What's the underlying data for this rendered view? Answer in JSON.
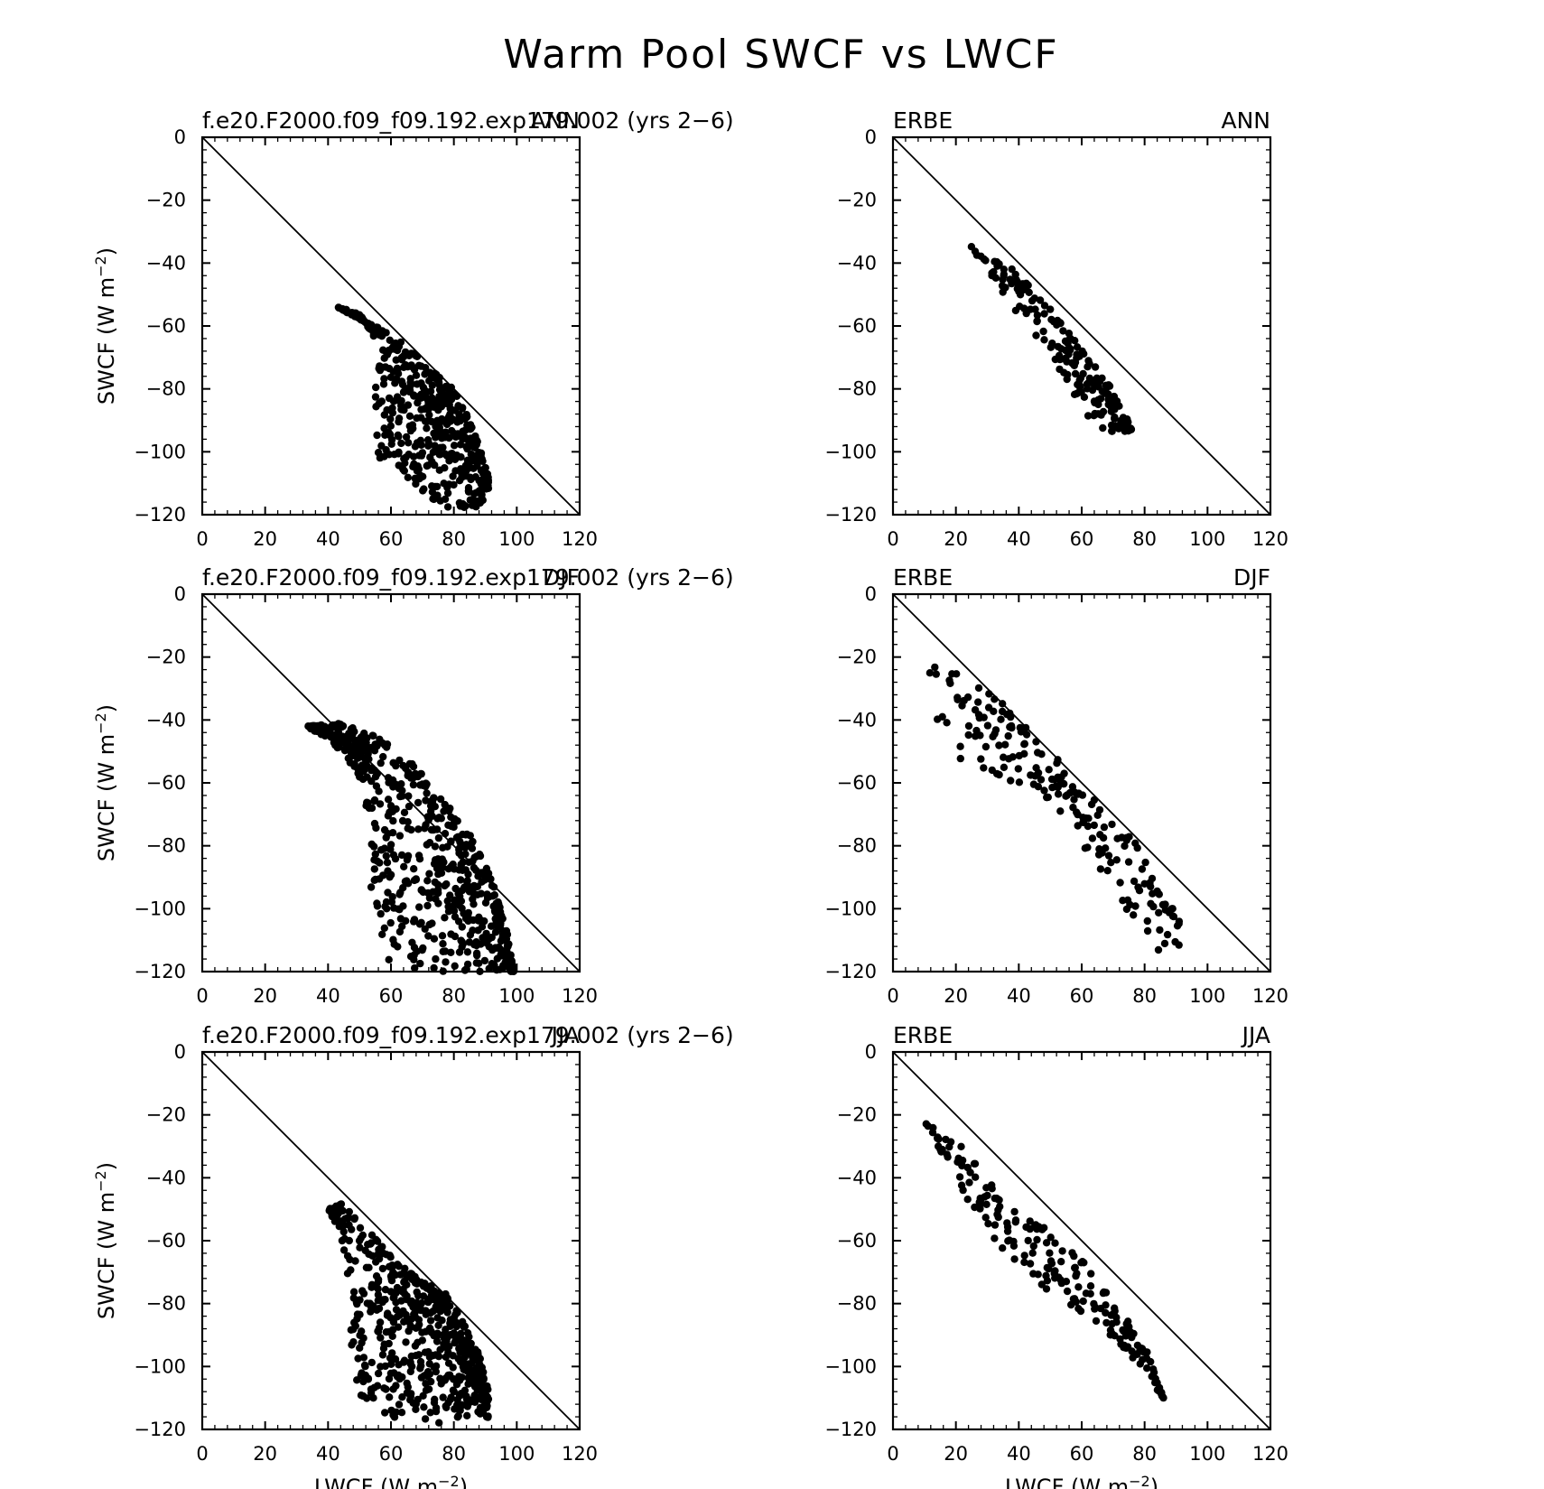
{
  "figure": {
    "title": "Warm Pool SWCF vs LWCF",
    "xlabel": "LWCF (W m",
    "ylabel": "SWCF (W m",
    "unit_exponent": "−2"
  },
  "chart_data": [
    {
      "type": "scatter",
      "left_label": "f.e20.F2000.f09_f09.192.exp179.002 (yrs 2−6)",
      "right_label": "ANN",
      "xlim": [
        0,
        120
      ],
      "ylim": [
        -120,
        0
      ],
      "xticks": [
        "0",
        "20",
        "40",
        "60",
        "80",
        "100",
        "120"
      ],
      "yticks": [
        "0",
        "−20",
        "−40",
        "−60",
        "−80",
        "−100",
        "−120"
      ],
      "reference_line": "y = -x",
      "cluster": {
        "count": 520,
        "x_range": [
          43,
          91
        ],
        "upper_edge": [
          [
            43,
            -54
          ],
          [
            50,
            -58
          ],
          [
            57,
            -61
          ],
          [
            63,
            -65
          ],
          [
            70,
            -71
          ],
          [
            75,
            -76
          ],
          [
            80,
            -80
          ],
          [
            84,
            -88
          ],
          [
            88,
            -98
          ],
          [
            91,
            -108
          ]
        ],
        "lower_edge": [
          [
            43,
            -54
          ],
          [
            50,
            -56
          ],
          [
            55,
            -64
          ],
          [
            55,
            -76
          ],
          [
            55,
            -92
          ],
          [
            56,
            -102
          ],
          [
            65,
            -108
          ],
          [
            75,
            -118
          ],
          [
            88,
            -118
          ],
          [
            91,
            -112
          ]
        ]
      }
    },
    {
      "type": "scatter",
      "left_label": "ERBE",
      "right_label": "ANN",
      "xlim": [
        0,
        120
      ],
      "ylim": [
        -120,
        0
      ],
      "xticks": [
        "0",
        "20",
        "40",
        "60",
        "80",
        "100",
        "120"
      ],
      "yticks": [
        "0",
        "−20",
        "−40",
        "−60",
        "−80",
        "−100",
        "−120"
      ],
      "reference_line": "y = -x",
      "cluster": {
        "count": 190,
        "x_range": [
          24,
          76
        ],
        "upper_edge": [
          [
            24,
            -34
          ],
          [
            32,
            -39
          ],
          [
            40,
            -43
          ],
          [
            48,
            -52
          ],
          [
            55,
            -61
          ],
          [
            62,
            -70
          ],
          [
            70,
            -80
          ],
          [
            76,
            -93
          ]
        ],
        "lower_edge": [
          [
            24,
            -34
          ],
          [
            32,
            -45
          ],
          [
            40,
            -58
          ],
          [
            48,
            -66
          ],
          [
            55,
            -77
          ],
          [
            62,
            -90
          ],
          [
            70,
            -95
          ],
          [
            76,
            -93
          ]
        ]
      }
    },
    {
      "type": "scatter",
      "left_label": "f.e20.F2000.f09_f09.192.exp179.002 (yrs 2−6)",
      "right_label": "DJF",
      "xlim": [
        0,
        120
      ],
      "ylim": [
        -120,
        0
      ],
      "xticks": [
        "0",
        "20",
        "40",
        "60",
        "80",
        "100",
        "120"
      ],
      "yticks": [
        "0",
        "−20",
        "−40",
        "−60",
        "−80",
        "−100",
        "−120"
      ],
      "reference_line": "y = -x",
      "cluster": {
        "count": 620,
        "x_range": [
          33,
          99
        ],
        "upper_edge": [
          [
            33,
            -42
          ],
          [
            45,
            -41
          ],
          [
            55,
            -45
          ],
          [
            65,
            -52
          ],
          [
            75,
            -63
          ],
          [
            85,
            -76
          ],
          [
            92,
            -90
          ],
          [
            97,
            -108
          ],
          [
            99,
            -120
          ]
        ],
        "lower_edge": [
          [
            33,
            -42
          ],
          [
            40,
            -46
          ],
          [
            48,
            -55
          ],
          [
            53,
            -70
          ],
          [
            53,
            -90
          ],
          [
            56,
            -105
          ],
          [
            58,
            -120
          ],
          [
            80,
            -120
          ],
          [
            99,
            -120
          ]
        ]
      }
    },
    {
      "type": "scatter",
      "left_label": "ERBE",
      "right_label": "DJF",
      "xlim": [
        0,
        120
      ],
      "ylim": [
        -120,
        0
      ],
      "xticks": [
        "0",
        "20",
        "40",
        "60",
        "80",
        "100",
        "120"
      ],
      "yticks": [
        "0",
        "−20",
        "−40",
        "−60",
        "−80",
        "−100",
        "−120"
      ],
      "reference_line": "y = -x",
      "cluster": {
        "count": 190,
        "x_range": [
          10,
          91
        ],
        "upper_edge": [
          [
            10,
            -22
          ],
          [
            20,
            -25
          ],
          [
            30,
            -30
          ],
          [
            40,
            -40
          ],
          [
            50,
            -50
          ],
          [
            60,
            -61
          ],
          [
            70,
            -72
          ],
          [
            78,
            -80
          ],
          [
            85,
            -96
          ],
          [
            91,
            -102
          ]
        ],
        "lower_edge": [
          [
            10,
            -22
          ],
          [
            15,
            -48
          ],
          [
            25,
            -57
          ],
          [
            40,
            -62
          ],
          [
            55,
            -70
          ],
          [
            65,
            -90
          ],
          [
            75,
            -101
          ],
          [
            85,
            -115
          ],
          [
            91,
            -112
          ]
        ]
      }
    },
    {
      "type": "scatter",
      "left_label": "f.e20.F2000.f09_f09.192.exp179.002 (yrs 2−6)",
      "right_label": "JJA",
      "xlim": [
        0,
        120
      ],
      "ylim": [
        -120,
        0
      ],
      "xticks": [
        "0",
        "20",
        "40",
        "60",
        "80",
        "100",
        "120"
      ],
      "yticks": [
        "0",
        "−20",
        "−40",
        "−60",
        "−80",
        "−100",
        "−120"
      ],
      "reference_line": "y = -x",
      "xlabel_shown": true,
      "cluster": {
        "count": 580,
        "x_range": [
          40,
          91
        ],
        "upper_edge": [
          [
            40,
            -50
          ],
          [
            45,
            -48
          ],
          [
            52,
            -56
          ],
          [
            60,
            -65
          ],
          [
            70,
            -73
          ],
          [
            78,
            -77
          ],
          [
            84,
            -88
          ],
          [
            88,
            -96
          ],
          [
            91,
            -108
          ]
        ],
        "lower_edge": [
          [
            40,
            -50
          ],
          [
            44,
            -58
          ],
          [
            47,
            -75
          ],
          [
            47,
            -97
          ],
          [
            50,
            -112
          ],
          [
            60,
            -116
          ],
          [
            75,
            -118
          ],
          [
            88,
            -115
          ],
          [
            91,
            -117
          ]
        ]
      }
    },
    {
      "type": "scatter",
      "left_label": "ERBE",
      "right_label": "JJA",
      "xlim": [
        0,
        120
      ],
      "ylim": [
        -120,
        0
      ],
      "xticks": [
        "0",
        "20",
        "40",
        "60",
        "80",
        "100",
        "120"
      ],
      "yticks": [
        "0",
        "−20",
        "−40",
        "−60",
        "−80",
        "−100",
        "−120"
      ],
      "reference_line": "y = -x",
      "xlabel_shown": true,
      "cluster": {
        "count": 200,
        "x_range": [
          10,
          86
        ],
        "upper_edge": [
          [
            10,
            -22
          ],
          [
            20,
            -28
          ],
          [
            30,
            -40
          ],
          [
            40,
            -50
          ],
          [
            50,
            -57
          ],
          [
            60,
            -66
          ],
          [
            70,
            -79
          ],
          [
            80,
            -93
          ],
          [
            86,
            -110
          ]
        ],
        "lower_edge": [
          [
            10,
            -22
          ],
          [
            15,
            -32
          ],
          [
            24,
            -48
          ],
          [
            35,
            -63
          ],
          [
            45,
            -73
          ],
          [
            55,
            -81
          ],
          [
            65,
            -88
          ],
          [
            75,
            -96
          ],
          [
            86,
            -110
          ]
        ]
      }
    }
  ]
}
